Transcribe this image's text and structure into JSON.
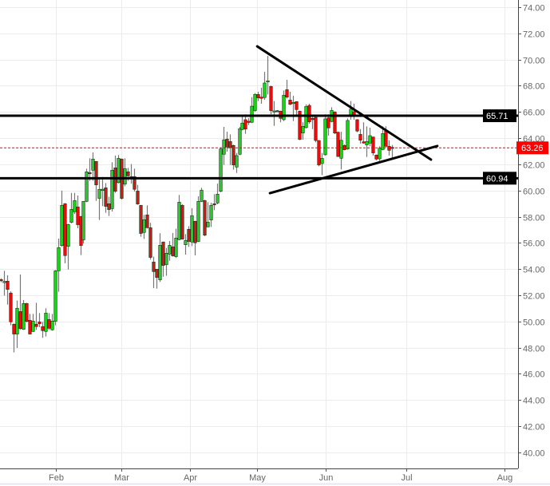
{
  "chart_data": {
    "type": "candlestick",
    "title": "",
    "xlabel": "",
    "ylabel": "",
    "ylim": [
      40,
      74
    ],
    "yticks": [
      "40.00",
      "42.00",
      "44.00",
      "46.00",
      "48.00",
      "50.00",
      "52.00",
      "54.00",
      "56.00",
      "58.00",
      "60.00",
      "62.00",
      "64.00",
      "66.00",
      "68.00",
      "70.00",
      "72.00",
      "74.00"
    ],
    "xticks": [
      "Feb",
      "Mar",
      "Apr",
      "May",
      "Jun",
      "Jul",
      "Aug"
    ],
    "grid": true,
    "colors": {
      "up": "#1fcc1f",
      "down": "#e01010",
      "border": "#1a3a1a",
      "wick": "#777777",
      "price_line": "#ff0000",
      "level": "#000000"
    },
    "candles_ohlc": [
      [
        53.2,
        53.3,
        53.0,
        53.15
      ],
      [
        53.0,
        53.87,
        51.97,
        53.06
      ],
      [
        53.08,
        53.53,
        51.29,
        52.45
      ],
      [
        52.17,
        52.3,
        49.71,
        49.97
      ],
      [
        49.79,
        49.85,
        47.64,
        49.04
      ],
      [
        49.04,
        51.6,
        47.98,
        51.01
      ],
      [
        50.76,
        53.59,
        49.36,
        49.46
      ],
      [
        49.4,
        51.64,
        49.36,
        51.37
      ],
      [
        51.37,
        51.43,
        49.93,
        50.01
      ],
      [
        50.09,
        50.58,
        49.0,
        49.04
      ],
      [
        49.24,
        50.58,
        49.2,
        50.03
      ],
      [
        49.79,
        51.43,
        49.36,
        49.61
      ],
      [
        49.97,
        50.64,
        49.57,
        49.83
      ],
      [
        49.61,
        49.97,
        48.75,
        49.3
      ],
      [
        49.24,
        51.01,
        48.85,
        50.64
      ],
      [
        50.15,
        50.64,
        49.36,
        49.48
      ],
      [
        49.36,
        50.58,
        49.3,
        50.03
      ],
      [
        50.01,
        53.93,
        49.71,
        53.87
      ],
      [
        53.87,
        56.33,
        52.27,
        55.64
      ],
      [
        55.8,
        59.99,
        55.7,
        58.87
      ],
      [
        58.99,
        59.05,
        54.44,
        55.03
      ],
      [
        55.74,
        57.45,
        53.97,
        57.41
      ],
      [
        57.57,
        59.82,
        57.5,
        58.56
      ],
      [
        58.38,
        59.82,
        58.2,
        59.23
      ],
      [
        58.75,
        59.62,
        57.12,
        57.39
      ],
      [
        58.02,
        58.05,
        55.07,
        55.8
      ],
      [
        56.23,
        59.2,
        55.96,
        59.17
      ],
      [
        59.17,
        61.67,
        59.11,
        61.43
      ],
      [
        61.37,
        62.46,
        60.74,
        61.29
      ],
      [
        61.55,
        62.91,
        60.74,
        62.4
      ],
      [
        62.22,
        62.25,
        59.21,
        60.43
      ],
      [
        59.4,
        60.84,
        57.75,
        60.09
      ],
      [
        60.08,
        61.04,
        58.81,
        60.1
      ],
      [
        60.21,
        60.57,
        58.3,
        58.79
      ],
      [
        58.99,
        59.52,
        58.06,
        58.54
      ],
      [
        58.62,
        62.16,
        58.4,
        61.55
      ],
      [
        61.73,
        62.67,
        59.82,
        59.94
      ],
      [
        60.61,
        62.71,
        60.53,
        62.46
      ],
      [
        62.4,
        62.45,
        59.31,
        59.4
      ],
      [
        60.49,
        62.46,
        60.33,
        61.67
      ],
      [
        61.43,
        61.73,
        60.74,
        61.12
      ],
      [
        61.06,
        62.02,
        60.53,
        60.88
      ],
      [
        61.06,
        61.67,
        59.92,
        60.09
      ],
      [
        59.96,
        60.43,
        58.91,
        58.97
      ],
      [
        58.87,
        58.9,
        56.47,
        56.72
      ],
      [
        56.8,
        58.14,
        56.31,
        57.77
      ],
      [
        58.14,
        58.87,
        57.1,
        57.16
      ],
      [
        57.16,
        57.53,
        54.72,
        54.89
      ],
      [
        54.54,
        54.95,
        52.55,
        53.81
      ],
      [
        53.99,
        54.0,
        52.51,
        53.36
      ],
      [
        53.18,
        56.74,
        53.02,
        55.82
      ],
      [
        56.07,
        56.1,
        53.42,
        54.28
      ],
      [
        54.34,
        55.62,
        53.49,
        55.21
      ],
      [
        55.15,
        56.15,
        54.64,
        55.82
      ],
      [
        55.7,
        56.76,
        54.95,
        55.01
      ],
      [
        54.95,
        57.08,
        54.85,
        56.37
      ],
      [
        56.25,
        59.66,
        56.2,
        59.11
      ],
      [
        58.87,
        58.95,
        56.25,
        56.29
      ],
      [
        55.86,
        56.67,
        55.11,
        56.19
      ],
      [
        57.04,
        57.28,
        55.7,
        56.11
      ],
      [
        56.07,
        58.65,
        55.76,
        58.08
      ],
      [
        57.65,
        57.7,
        55.05,
        56.0
      ],
      [
        56.11,
        59.56,
        56.07,
        59.17
      ],
      [
        59.17,
        60.21,
        59.11,
        60.03
      ],
      [
        59.23,
        59.3,
        56.51,
        56.59
      ],
      [
        57.22,
        59.11,
        57.2,
        57.59
      ],
      [
        57.75,
        59.07,
        57.22,
        58.87
      ],
      [
        58.99,
        59.72,
        58.5,
        58.91
      ],
      [
        59.05,
        60.53,
        58.95,
        59.72
      ],
      [
        59.94,
        63.3,
        59.86,
        63.17
      ],
      [
        62.77,
        64.86,
        61.95,
        63.87
      ],
      [
        63.93,
        64.49,
        62.97,
        63.32
      ],
      [
        63.74,
        64.29,
        61.95,
        63.27
      ],
      [
        63.44,
        63.5,
        61.59,
        61.95
      ],
      [
        61.79,
        62.87,
        61.34,
        62.67
      ],
      [
        62.77,
        64.86,
        62.7,
        64.72
      ],
      [
        64.66,
        65.71,
        64.6,
        65.15
      ],
      [
        65.41,
        65.82,
        64.33,
        64.69
      ],
      [
        65.29,
        65.53,
        65.0,
        65.25
      ],
      [
        65.21,
        67.13,
        65.15,
        66.44
      ],
      [
        66.1,
        67.44,
        66.02,
        67.34
      ],
      [
        67.34,
        67.54,
        66.83,
        67.07
      ],
      [
        67.13,
        67.85,
        66.63,
        67.1
      ],
      [
        67.1,
        69.06,
        66.93,
        68.21
      ],
      [
        68.29,
        70.28,
        67.34,
        68.38
      ],
      [
        67.95,
        68.0,
        65.82,
        66.1
      ],
      [
        66.05,
        66.83,
        64.94,
        66.08
      ],
      [
        66.1,
        66.15,
        66.0,
        66.07
      ],
      [
        66.06,
        66.1,
        65.21,
        65.51
      ],
      [
        65.41,
        67.64,
        65.3,
        67.28
      ],
      [
        67.7,
        68.45,
        67.03,
        67.13
      ],
      [
        66.91,
        67.54,
        66.52,
        66.58
      ],
      [
        66.67,
        67.24,
        65.3,
        66.73
      ],
      [
        66.79,
        66.8,
        65.71,
        66.18
      ],
      [
        66.06,
        66.1,
        63.85,
        63.9
      ],
      [
        64.39,
        65.21,
        63.88,
        64.9
      ],
      [
        64.8,
        66.58,
        64.75,
        66.42
      ],
      [
        66.5,
        66.63,
        65.1,
        65.24
      ],
      [
        65.51,
        65.71,
        64.69,
        65.41
      ],
      [
        65.59,
        65.6,
        63.68,
        63.82
      ],
      [
        63.82,
        63.85,
        61.85,
        61.95
      ],
      [
        62.06,
        62.87,
        61.18,
        62.46
      ],
      [
        62.73,
        65.82,
        62.67,
        65.47
      ],
      [
        65.55,
        65.82,
        64.19,
        64.78
      ],
      [
        65.27,
        66.36,
        65.21,
        66.12
      ],
      [
        66.0,
        66.05,
        64.31,
        64.39
      ],
      [
        64.45,
        64.5,
        62.56,
        62.6
      ],
      [
        62.46,
        64.49,
        61.61,
        63.84
      ],
      [
        63.44,
        63.52,
        63.07,
        63.11
      ],
      [
        63.17,
        65.51,
        63.11,
        65.35
      ],
      [
        65.67,
        66.83,
        65.41,
        66.22
      ],
      [
        66.02,
        66.63,
        65.41,
        65.67
      ],
      [
        65.41,
        65.45,
        64.45,
        64.54
      ],
      [
        64.29,
        64.69,
        63.58,
        63.84
      ],
      [
        63.72,
        65.21,
        63.58,
        63.64
      ],
      [
        63.48,
        64.9,
        62.56,
        63.74
      ],
      [
        63.62,
        64.8,
        63.38,
        64.19
      ],
      [
        64.09,
        64.1,
        62.67,
        62.87
      ],
      [
        62.71,
        62.75,
        62.3,
        62.4
      ],
      [
        62.42,
        63.38,
        62.26,
        63.23
      ],
      [
        63.13,
        64.9,
        63.07,
        64.35
      ],
      [
        64.54,
        64.9,
        63.27,
        63.38
      ],
      [
        63.38,
        63.84,
        62.67,
        63.07
      ],
      [
        63.3,
        63.48,
        62.46,
        63.26
      ]
    ],
    "levels": [
      {
        "price": 65.71,
        "label": "65.71",
        "style": "solid"
      },
      {
        "price": 60.94,
        "label": "60.94",
        "style": "solid"
      }
    ],
    "current_price": {
      "price": 63.26,
      "label": "63.26"
    },
    "trendlines": [
      {
        "from": {
          "bar": 80.7,
          "price": 71.01
        },
        "to": {
          "bar": 135.4,
          "price": 62.36
        }
      },
      {
        "from": {
          "bar": 84.7,
          "price": 59.8
        },
        "to": {
          "bar": 137.4,
          "price": 63.4
        }
      }
    ]
  }
}
